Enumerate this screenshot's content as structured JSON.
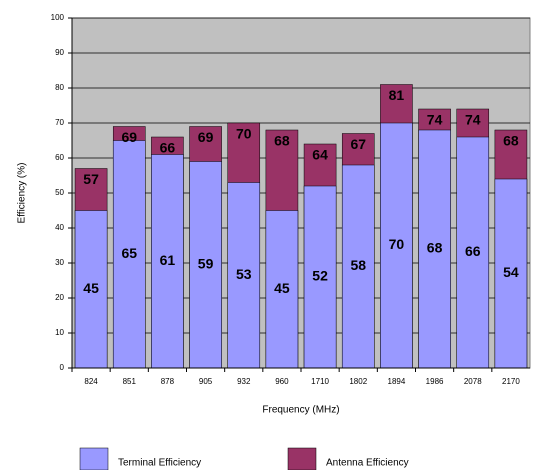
{
  "chart_data": {
    "type": "bar",
    "overlap": true,
    "xlabel": "Frequency (MHz)",
    "ylabel": "Efficiency (%)",
    "categories": [
      "824",
      "851",
      "878",
      "905",
      "932",
      "960",
      "1710",
      "1802",
      "1894",
      "1986",
      "2078",
      "2170"
    ],
    "series": [
      {
        "name": "Terminal Efficiency",
        "color": "#9999ff",
        "values": [
          45,
          65,
          61,
          59,
          53,
          45,
          52,
          58,
          70,
          68,
          66,
          54
        ]
      },
      {
        "name": "Antenna Efficiency",
        "color": "#993366",
        "values": [
          57,
          69,
          66,
          69,
          70,
          68,
          64,
          67,
          81,
          74,
          74,
          68
        ]
      }
    ],
    "ylim": [
      0,
      100
    ],
    "yticks": [
      0,
      10,
      20,
      30,
      40,
      50,
      60,
      70,
      80,
      90,
      100
    ],
    "grid": true,
    "plot_background": "#c0c0c0",
    "legend": "bottom"
  }
}
